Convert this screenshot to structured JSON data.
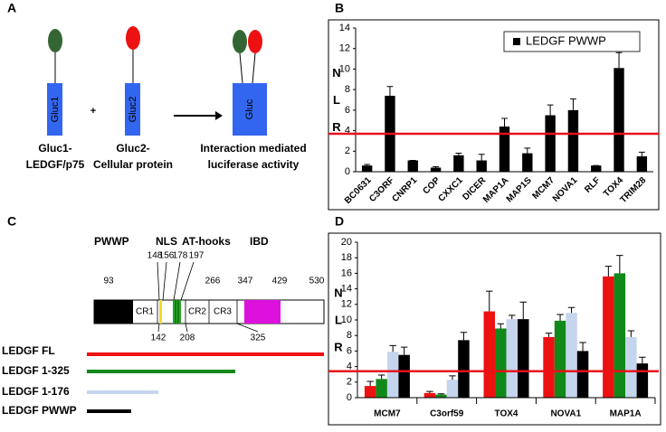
{
  "panel_labels": [
    "A",
    "B",
    "C",
    "D"
  ],
  "diagram_a": {
    "box_labels": [
      "Gluc1",
      "Gluc2",
      "Gluc"
    ],
    "plus": "+",
    "captions": [
      [
        "Gluc1-",
        "LEDGF/p75"
      ],
      [
        "Gluc2-",
        "Cellular protein"
      ],
      [
        "Interaction mediated",
        "luciferase activity"
      ]
    ]
  },
  "diagram_c": {
    "domains": [
      "PWWP",
      "NLS",
      "AT-hooks",
      "IBD"
    ],
    "regions": [
      "CR1",
      "CR2",
      "CR3"
    ],
    "top_positions": [
      "148",
      "156",
      "178",
      "197"
    ],
    "mid_positions": [
      "93",
      "266",
      "347",
      "429",
      "530"
    ],
    "bottom_positions": [
      "142",
      "208",
      "325"
    ],
    "constructs": [
      "LEDGF FL",
      "LEDGF 1-325",
      "LEDGF 1-176",
      "LEDGF PWWP"
    ]
  },
  "chart_data": [
    {
      "type": "bar",
      "categories": [
        "BC0631",
        "C3ORF",
        "CNRP1",
        "COP",
        "CXXC1",
        "DICER",
        "MAP1A",
        "MAP1S",
        "MCM7",
        "NOVA1",
        "RLF",
        "TOX4",
        "TRIM28"
      ],
      "series": [
        {
          "name": "LEDGF PWWP",
          "color": "#000000",
          "values": [
            0.6,
            7.4,
            1.1,
            0.4,
            1.6,
            1.1,
            4.4,
            1.8,
            5.5,
            6.0,
            0.6,
            10.1,
            1.5
          ],
          "errors": [
            0.1,
            0.9,
            0,
            0.1,
            0.2,
            0.6,
            0.8,
            0.5,
            1.0,
            1.1,
            0,
            1.5,
            0.4
          ]
        }
      ],
      "ylim": [
        0,
        14
      ],
      "yticks": [
        0,
        2,
        4,
        6,
        8,
        10,
        12,
        14
      ],
      "y_label": "N L R",
      "threshold": 3.7,
      "threshold_color": "#e8101a",
      "legend": "top-right",
      "label_rotation": -45
    },
    {
      "type": "bar",
      "categories": [
        "MCM7",
        "C3orf59",
        "TOX4",
        "NOVA1",
        "MAP1A"
      ],
      "series": [
        {
          "color": "#ee1111",
          "values": [
            1.5,
            0.6,
            11.1,
            7.8,
            15.6
          ],
          "errors": [
            0.6,
            0.2,
            2.6,
            0.5,
            1.3
          ]
        },
        {
          "color": "#11881a",
          "values": [
            2.4,
            0.4,
            8.9,
            9.9,
            16.0
          ],
          "errors": [
            0.5,
            0.1,
            0.6,
            0.8,
            2.3
          ]
        },
        {
          "color": "#c5d5ee",
          "values": [
            5.9,
            2.3,
            10.1,
            10.9,
            7.8
          ],
          "errors": [
            0.8,
            0.5,
            0.5,
            0.7,
            0.8
          ]
        },
        {
          "color": "#000000",
          "values": [
            5.5,
            7.4,
            10.1,
            6.0,
            4.4
          ],
          "errors": [
            1.0,
            1.0,
            2.2,
            1.1,
            0.8
          ]
        }
      ],
      "ylim": [
        0,
        20
      ],
      "yticks": [
        0,
        2,
        4,
        6,
        8,
        10,
        12,
        14,
        16,
        18,
        20
      ],
      "y_label": "N L R",
      "threshold": 3.4,
      "threshold_color": "#e8101a",
      "label_rotation": 0
    }
  ]
}
